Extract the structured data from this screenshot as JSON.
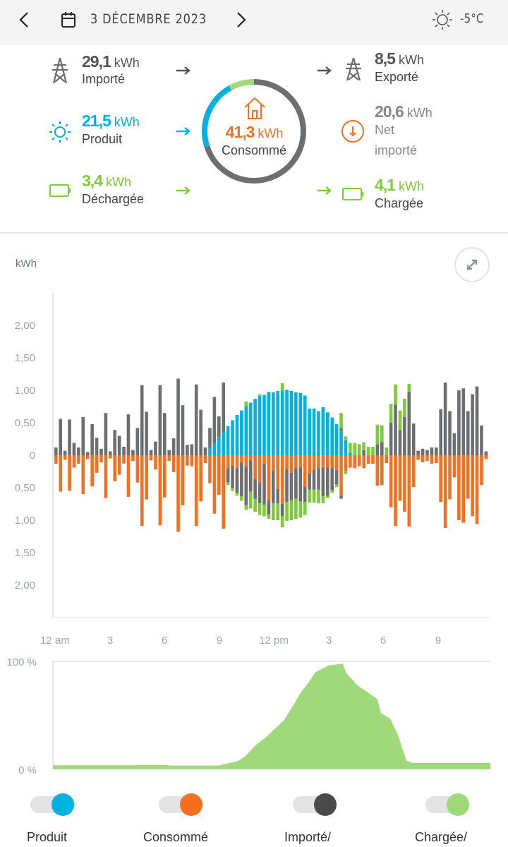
{
  "header": {
    "date": "3 DÉCEMBRE 2023",
    "temperature": "-5°C"
  },
  "summary": {
    "imported": {
      "value": "29,1",
      "unit": "kWh",
      "label": "Importé"
    },
    "produced": {
      "value": "21,5",
      "unit": "kWh",
      "label": "Produit"
    },
    "discharged": {
      "value": "3,4",
      "unit": "kWh",
      "label": "Déchargée"
    },
    "consumed": {
      "value": "41,3",
      "unit": "kWh",
      "label": "Consommé"
    },
    "exported": {
      "value": "8,5",
      "unit": "kWh",
      "label": "Exporté"
    },
    "net": {
      "value": "20,6",
      "unit": "kWh",
      "label1": "Net",
      "label2": "importé"
    },
    "charged": {
      "value": "4,1",
      "unit": "kWh",
      "label": "Chargée"
    }
  },
  "colors": {
    "produced": "#00b2e0",
    "consumed": "#f37021",
    "grid": "#6d6e70",
    "battery": "#7ecb3a",
    "soc": "#a0d87c",
    "dark": "#4a4a4a"
  },
  "chart_data": [
    {
      "type": "bar",
      "title": "",
      "ylabel": "kWh",
      "ylim": [
        -2.5,
        2.5
      ],
      "yticks": [
        "2,00",
        "1,50",
        "1,00",
        "0,50",
        "0",
        "0,50",
        "1,00",
        "1,50",
        "2,00"
      ],
      "xticks": [
        "12 am",
        "3",
        "6",
        "9",
        "12 pm",
        "3",
        "6",
        "9"
      ],
      "interval_minutes": 15,
      "series": [
        {
          "name": "Produit",
          "sign": "positive",
          "values": [
            0,
            0,
            0,
            0,
            0,
            0,
            0,
            0,
            0,
            0,
            0,
            0,
            0,
            0,
            0,
            0,
            0,
            0,
            0,
            0,
            0,
            0,
            0,
            0,
            0,
            0,
            0,
            0,
            0,
            0,
            0,
            0,
            0,
            0,
            0.11,
            0.19,
            0.28,
            0.36,
            0.45,
            0.54,
            0.62,
            0.69,
            0.75,
            0.81,
            0.87,
            0.92,
            0.93,
            0.97,
            0.97,
            0.99,
            1.0,
            1.01,
            0.99,
            0.97,
            0.96,
            0.92,
            0.72,
            0.72,
            0.68,
            0.74,
            0.66,
            0.58,
            0.48,
            0.38,
            0.23,
            0.04,
            0.01,
            0,
            0,
            0,
            0,
            0,
            0,
            0,
            0,
            0,
            0,
            0,
            0,
            0,
            0,
            0,
            0,
            0,
            0,
            0,
            0,
            0,
            0,
            0,
            0,
            0,
            0,
            0,
            0,
            0
          ]
        },
        {
          "name": "Importé",
          "sign": "positive",
          "values": [
            0.12,
            0.56,
            0.07,
            0.55,
            0.19,
            0.12,
            0.59,
            0.05,
            0.48,
            0.27,
            0.1,
            0.65,
            0.06,
            0.39,
            0.3,
            0.13,
            0.63,
            0.08,
            0.42,
            1.08,
            0.67,
            0.08,
            0.21,
            1.08,
            0.65,
            0.08,
            0.26,
            1.18,
            0.77,
            0.16,
            0.17,
            1.09,
            0.7,
            0.12,
            0.31,
            0.71,
            0.32,
            0.76,
            0,
            0,
            0,
            0,
            0,
            0,
            0,
            0,
            0,
            0,
            0,
            0,
            0,
            0,
            0,
            0,
            0,
            0,
            0,
            0,
            0,
            0,
            0,
            0,
            0,
            0.04,
            0,
            0,
            0,
            0,
            0.08,
            0,
            0,
            0.17,
            0.2,
            0,
            0.5,
            0.78,
            0.39,
            0.59,
            0.98,
            0.49,
            0.07,
            0.1,
            0.08,
            0.12,
            0.12,
            0.71,
            1.12,
            0.68,
            0.34,
            1.0,
            1.03,
            0.68,
            0.94,
            1.06,
            0.46,
            0.06
          ]
        },
        {
          "name": "Déchargée",
          "sign": "positive",
          "values": [
            0,
            0,
            0,
            0,
            0,
            0,
            0,
            0,
            0,
            0,
            0,
            0,
            0,
            0,
            0,
            0,
            0,
            0,
            0,
            0,
            0,
            0,
            0,
            0,
            0,
            0,
            0,
            0,
            0,
            0,
            0,
            0,
            0,
            0,
            0,
            0,
            0,
            0,
            0,
            0,
            0,
            0,
            0.08,
            0,
            0,
            0.02,
            0,
            0.01,
            0,
            0,
            0.11,
            0,
            0,
            0,
            0,
            0,
            0,
            0,
            0,
            0,
            0,
            0,
            0,
            0.23,
            0.06,
            0.15,
            0.18,
            0.17,
            0.12,
            0.13,
            0.13,
            0.3,
            0.26,
            0.12,
            0.29,
            0.31,
            0.3,
            0.28,
            0.12,
            0,
            0,
            0,
            0,
            0,
            0,
            0,
            0,
            0,
            0,
            0,
            0,
            0,
            0,
            0,
            0,
            0
          ]
        },
        {
          "name": "Consommé",
          "sign": "negative",
          "values": [
            0.13,
            0.56,
            0.07,
            0.55,
            0.19,
            0.13,
            0.6,
            0.06,
            0.48,
            0.27,
            0.11,
            0.66,
            0.05,
            0.4,
            0.3,
            0.12,
            0.64,
            0.09,
            0.42,
            1.09,
            0.68,
            0.08,
            0.22,
            1.08,
            0.65,
            0.09,
            0.26,
            1.18,
            0.77,
            0.16,
            0.17,
            1.09,
            0.71,
            0.12,
            0.43,
            0.9,
            0.61,
            1.13,
            0.2,
            0.16,
            0.2,
            0.11,
            0.18,
            0.08,
            0.37,
            0.42,
            0.13,
            0.69,
            0.24,
            0.52,
            0.75,
            0.22,
            0.27,
            0.2,
            0.19,
            0.48,
            0.28,
            0.22,
            0.2,
            0.19,
            0.19,
            0.2,
            0.23,
            0.63,
            0.24,
            0.19,
            0.2,
            0.17,
            0.2,
            0.13,
            0.13,
            0.47,
            0.46,
            0.12,
            0.8,
            1.09,
            0.7,
            0.87,
            1.1,
            0.49,
            0.07,
            0.11,
            0.09,
            0.13,
            0.12,
            0.72,
            1.12,
            0.68,
            0.34,
            1.0,
            1.04,
            0.67,
            0.94,
            1.06,
            0.46,
            0.06
          ]
        },
        {
          "name": "Exporté",
          "sign": "negative",
          "values": [
            0,
            0,
            0,
            0,
            0,
            0,
            0,
            0,
            0,
            0,
            0,
            0,
            0,
            0,
            0,
            0,
            0,
            0,
            0,
            0,
            0,
            0,
            0,
            0,
            0,
            0,
            0,
            0,
            0,
            0,
            0,
            0,
            0,
            0,
            0,
            0,
            0,
            0,
            0.22,
            0.34,
            0.38,
            0.52,
            0.59,
            0.48,
            0.3,
            0.32,
            0.63,
            0.22,
            0.5,
            0.22,
            0.19,
            0.5,
            0.42,
            0.47,
            0.52,
            0.24,
            0.25,
            0.31,
            0.33,
            0.44,
            0.43,
            0.34,
            0.22,
            0.04,
            0,
            0,
            0,
            0,
            0,
            0,
            0,
            0,
            0,
            0,
            0,
            0,
            0,
            0,
            0,
            0,
            0,
            0,
            0,
            0,
            0,
            0,
            0,
            0,
            0,
            0,
            0,
            0,
            0,
            0,
            0,
            0
          ]
        },
        {
          "name": "Chargée",
          "sign": "negative",
          "values": [
            0,
            0,
            0,
            0,
            0,
            0,
            0,
            0,
            0,
            0,
            0,
            0,
            0,
            0,
            0,
            0.01,
            0,
            0,
            0,
            0,
            0,
            0,
            0,
            0,
            0,
            0,
            0,
            0,
            0,
            0,
            0,
            0,
            0,
            0,
            0,
            0,
            0,
            0,
            0.04,
            0.05,
            0.04,
            0.07,
            0.07,
            0.26,
            0.2,
            0.18,
            0.18,
            0.07,
            0.26,
            0.26,
            0.17,
            0.29,
            0.31,
            0.31,
            0.25,
            0.2,
            0.2,
            0.2,
            0.21,
            0.11,
            0.04,
            0.04,
            0.04,
            0,
            0.05,
            0,
            0,
            0,
            0,
            0,
            0,
            0,
            0,
            0,
            0,
            0,
            0,
            0,
            0,
            0,
            0,
            0,
            0,
            0,
            0,
            0,
            0,
            0,
            0,
            0,
            0,
            0,
            0,
            0,
            0,
            0
          ]
        }
      ]
    },
    {
      "type": "area",
      "title": "",
      "ylabel": "",
      "ylim": [
        0,
        100
      ],
      "yticks": [
        "100 %",
        "0 %"
      ],
      "x_hours": [
        0,
        4.4,
        4.5,
        6.3,
        6.4,
        9.1,
        10.2,
        10.6,
        11.1,
        11.7,
        12.2,
        12.7,
        13.1,
        13.6,
        14.0,
        14.4,
        15.1,
        15.9,
        16.1,
        16.7,
        17.2,
        17.8,
        18.0,
        18.5,
        18.9,
        19.4,
        19.7,
        24
      ],
      "values": [
        3.7,
        3.7,
        4,
        4,
        3.5,
        3.5,
        8,
        13,
        22,
        30,
        38,
        46,
        57,
        71,
        80,
        90,
        96,
        98,
        89,
        78,
        72,
        65,
        52,
        47,
        33,
        8,
        6,
        6
      ]
    }
  ],
  "legend": [
    {
      "label": "Produit",
      "color": "#00b2e0"
    },
    {
      "label": "Consommé",
      "color": "#f37021"
    },
    {
      "label": "Importé/",
      "color": "#4a4a4a"
    },
    {
      "label": "Chargée/",
      "color": "#a0d87c"
    }
  ]
}
